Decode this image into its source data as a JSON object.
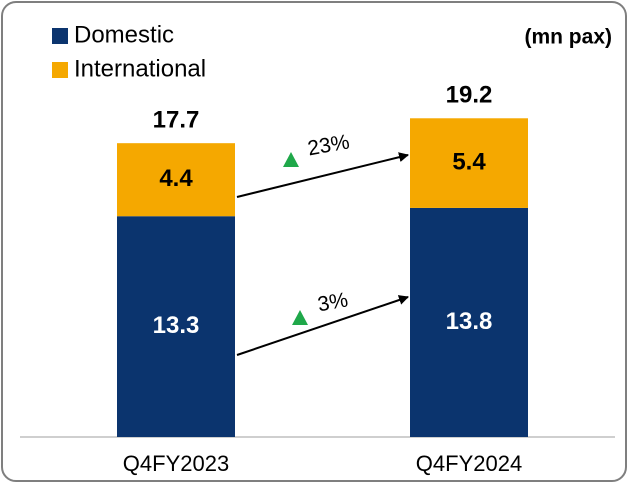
{
  "chart_data": {
    "type": "bar",
    "stacked": true,
    "unit_label": "(mn pax)",
    "categories": [
      "Q4FY2023",
      "Q4FY2024"
    ],
    "series": [
      {
        "name": "Domestic",
        "color": "#0b346e",
        "values": [
          13.3,
          13.8
        ]
      },
      {
        "name": "International",
        "color": "#f5a800",
        "values": [
          4.4,
          5.4
        ]
      }
    ],
    "totals": [
      17.7,
      19.2
    ],
    "annotations": [
      "23%",
      "3%"
    ],
    "annotation_color": "#1fa84a"
  }
}
